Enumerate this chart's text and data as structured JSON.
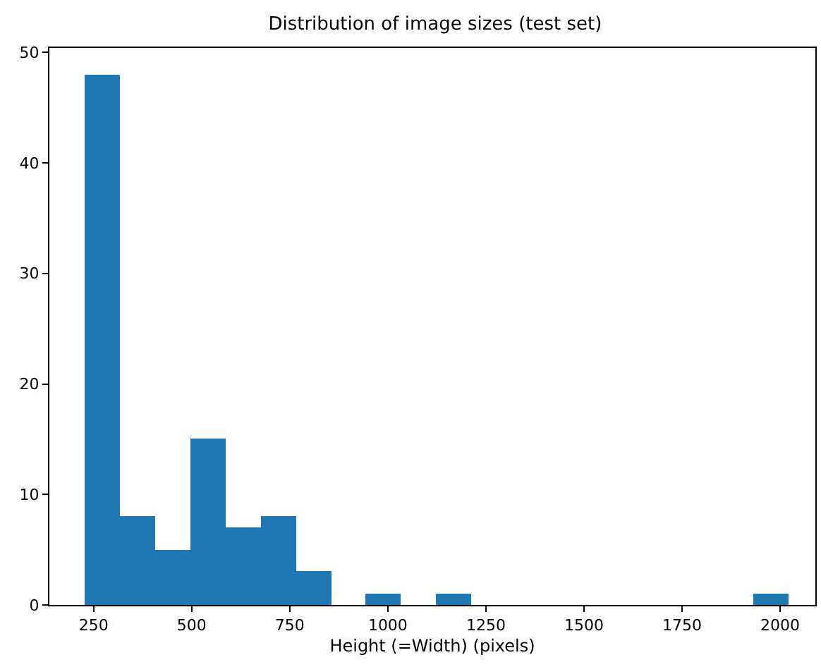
{
  "chart_data": {
    "type": "histogram",
    "title": "Distribution of image sizes (test set)",
    "xlabel": "Height (=Width) (pixels)",
    "bins": [
      226,
      315.8,
      405.6,
      495.4,
      585.2,
      675,
      764.8,
      854.6,
      944.4,
      1034.2,
      1124,
      1213.8,
      1303.6,
      1393.4,
      1483.2,
      1573,
      1662.8,
      1752.6,
      1842.4,
      1932.2,
      2022
    ],
    "values": [
      48,
      8,
      5,
      15,
      7,
      8,
      3,
      0,
      1,
      0,
      1,
      0,
      0,
      0,
      0,
      0,
      0,
      0,
      0,
      1
    ],
    "color": "#1f77b4",
    "xlim": [
      137,
      2090
    ],
    "xticks": [
      250,
      500,
      750,
      1000,
      1250,
      1500,
      1750,
      2000
    ],
    "ylim": [
      0,
      50.4
    ],
    "yticks": [
      0,
      10,
      20,
      30,
      40,
      50
    ]
  }
}
